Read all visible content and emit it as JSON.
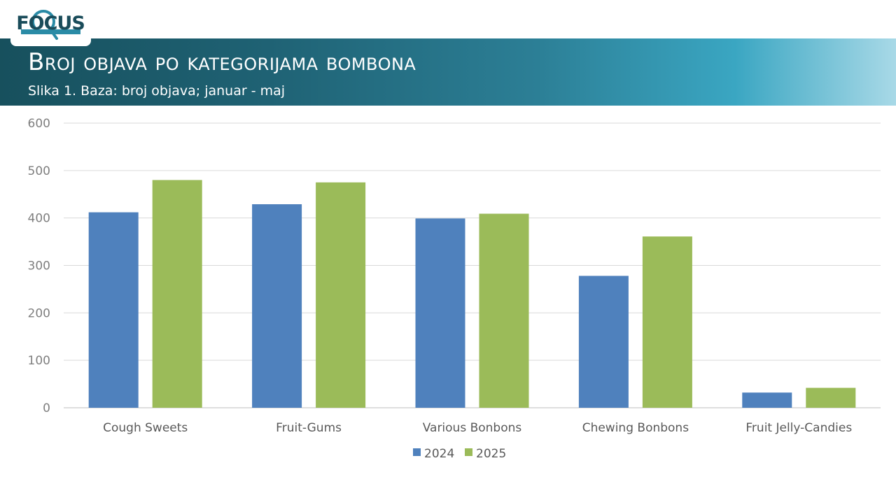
{
  "logo": {
    "text": "FOCUS",
    "color": "#1a4c5a",
    "accent": "#2a8ba6"
  },
  "header": {
    "title": "Broj objava po kategorijama bombona",
    "subtitle": "Slika 1. Baza: broj objava; januar - maj"
  },
  "chart_data": {
    "type": "bar",
    "categories": [
      "Cough Sweets",
      "Fruit-Gums",
      "Various Bonbons",
      "Chewing Bonbons",
      "Fruit Jelly-Candies"
    ],
    "series": [
      {
        "name": "2024",
        "color": "#4f81bd",
        "values": [
          412,
          429,
          399,
          278,
          32
        ]
      },
      {
        "name": "2025",
        "color": "#9bbb59",
        "values": [
          480,
          475,
          409,
          361,
          42
        ]
      }
    ],
    "xlabel": "",
    "ylabel": "",
    "ylim": [
      0,
      600
    ],
    "yticks": [
      0,
      100,
      200,
      300,
      400,
      500,
      600
    ],
    "grid": true,
    "legend": "bottom-center"
  }
}
